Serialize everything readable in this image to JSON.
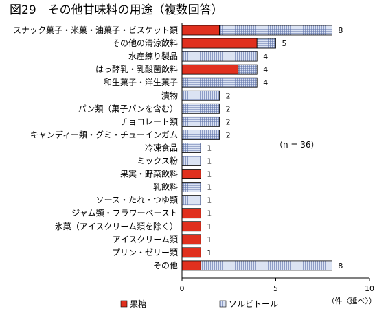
{
  "colors": {
    "sugar": "#e0301e",
    "sorbitol_fill": "#dbe3f3",
    "sorbitol_grid": "#5b6fa8",
    "outline": "#000000",
    "gridline": "#000000"
  },
  "chart_data": {
    "type": "bar",
    "orientation": "horizontal",
    "stacked": true,
    "title": "図29　その他甘味料の用途（複数回答）",
    "categories": [
      "スナック菓子・米菓・油菓子・ビスケット類",
      "その他の清涼飲料",
      "水産練り製品",
      "はっ酵乳・乳酸菌飲料",
      "和生菓子・洋生菓子",
      "漬物",
      "パン類（菓子パンを含む）",
      "チョコレート類",
      "キャンディー類・グミ・チューインガム",
      "冷凍食品",
      "ミックス粉",
      "果実・野菜飲料",
      "乳飲料",
      "ソース・たれ・つゆ類",
      "ジャム類・フラワーペースト",
      "氷菓（アイスクリーム類を除く）",
      "アイスクリーム類",
      "プリン・ゼリー類",
      "その他"
    ],
    "series": [
      {
        "name": "果糖",
        "values": [
          2,
          4,
          0,
          3,
          0,
          0,
          0,
          0,
          0,
          0,
          0,
          1,
          0,
          0,
          1,
          1,
          1,
          1,
          1
        ]
      },
      {
        "name": "ソルビトール",
        "values": [
          6,
          1,
          4,
          1,
          4,
          2,
          2,
          2,
          2,
          1,
          1,
          0,
          1,
          1,
          0,
          0,
          0,
          0,
          7
        ]
      }
    ],
    "totals": [
      8,
      5,
      4,
      4,
      4,
      2,
      2,
      2,
      2,
      1,
      1,
      1,
      1,
      1,
      1,
      1,
      1,
      1,
      8
    ],
    "xlim": [
      0,
      10
    ],
    "xticks": [
      0,
      5,
      10
    ],
    "xunit": "（件〈延べ〉）",
    "annotation": "（n = 36）",
    "grid": false,
    "legend_position": "bottom-left"
  }
}
